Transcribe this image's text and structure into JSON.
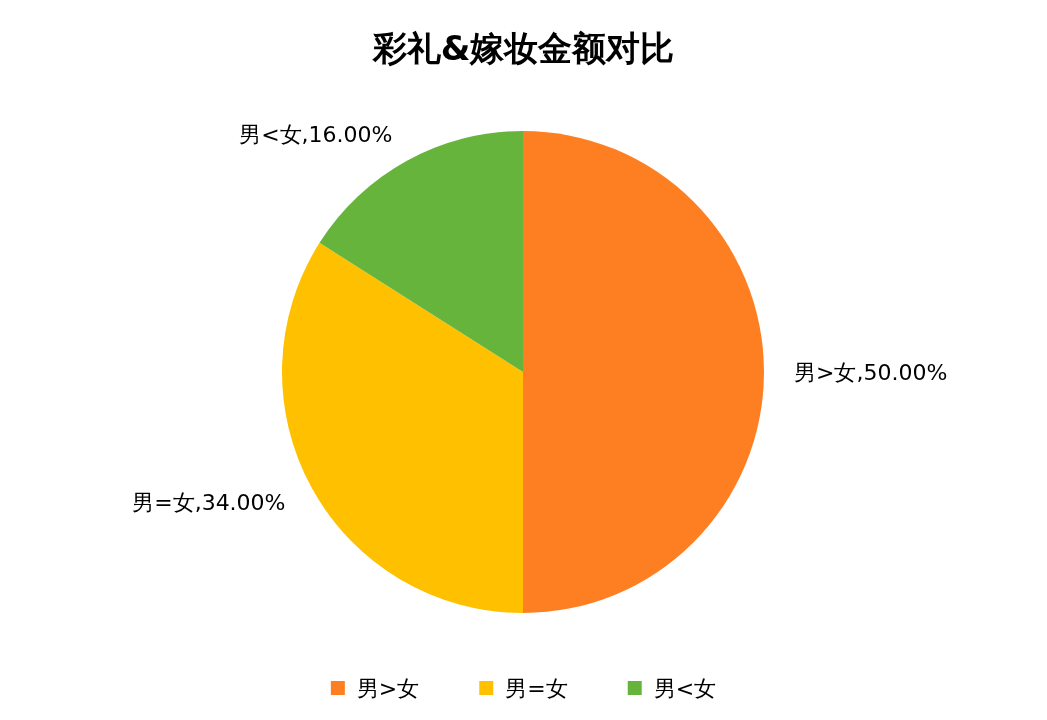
{
  "chart_data": {
    "type": "pie",
    "title": "彩礼&嫁妆金额对比",
    "categories": [
      "男>女",
      "男=女",
      "男<女"
    ],
    "values": [
      50,
      34,
      16
    ],
    "colors": [
      "#fe7f22",
      "#ffc000",
      "#67b43c"
    ],
    "value_labels": [
      "男>女,50.00%",
      "男=女,34.00%",
      "男<女,16.00%"
    ],
    "legend": "bottom"
  }
}
